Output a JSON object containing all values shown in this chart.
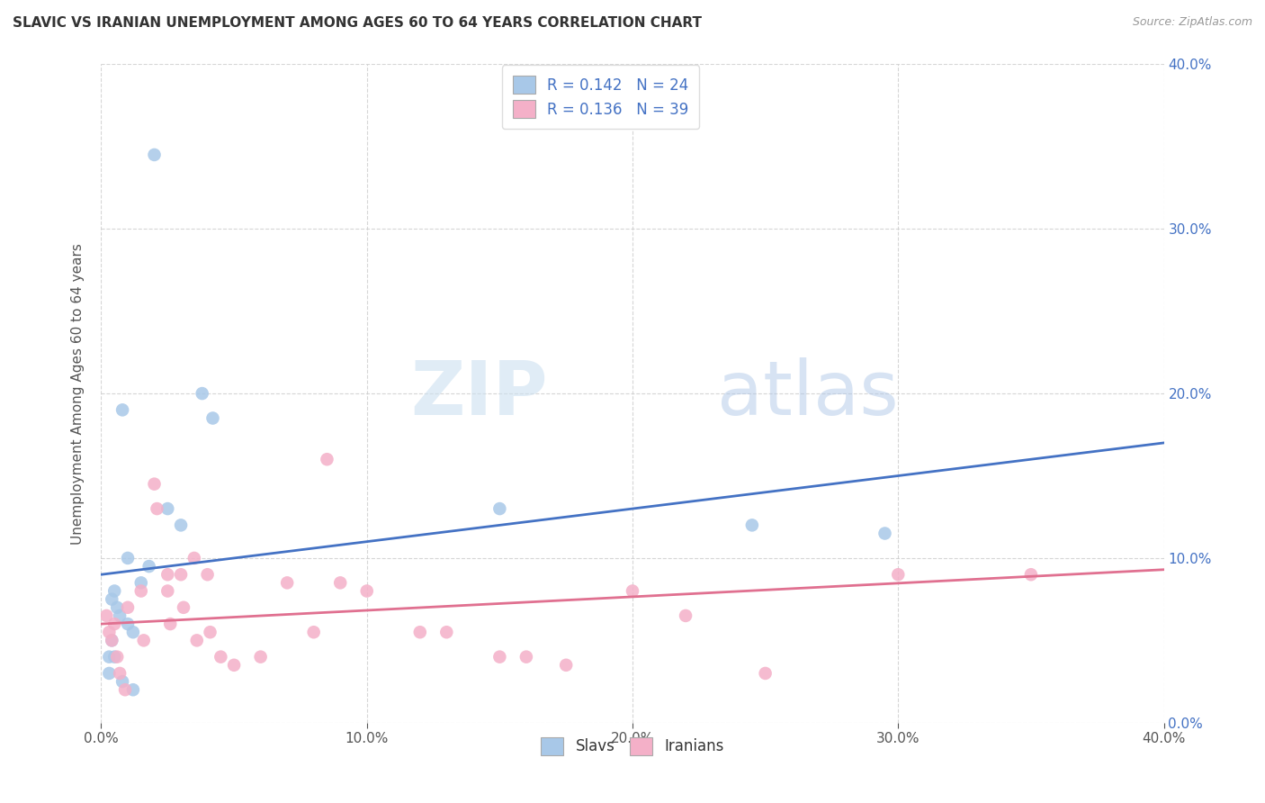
{
  "title": "SLAVIC VS IRANIAN UNEMPLOYMENT AMONG AGES 60 TO 64 YEARS CORRELATION CHART",
  "source": "Source: ZipAtlas.com",
  "ylabel": "Unemployment Among Ages 60 to 64 years",
  "xlim": [
    0.0,
    0.4
  ],
  "ylim": [
    0.0,
    0.4
  ],
  "xtick_vals": [
    0.0,
    0.1,
    0.2,
    0.3,
    0.4
  ],
  "ytick_vals": [
    0.0,
    0.1,
    0.2,
    0.3,
    0.4
  ],
  "slavs_color": "#a8c8e8",
  "iranians_color": "#f4b0c8",
  "slavs_line_color": "#4472c4",
  "iranians_line_color": "#e07090",
  "watermark_zip": "ZIP",
  "watermark_atlas": "atlas",
  "background_color": "#ffffff",
  "grid_color": "#cccccc",
  "slavs_line_y0": 0.09,
  "slavs_line_y1": 0.17,
  "iranians_line_y0": 0.06,
  "iranians_line_y1": 0.093,
  "slavs_x": [
    0.02,
    0.038,
    0.042,
    0.008,
    0.01,
    0.018,
    0.015,
    0.005,
    0.004,
    0.006,
    0.007,
    0.01,
    0.012,
    0.004,
    0.003,
    0.003,
    0.008,
    0.012,
    0.025,
    0.03,
    0.005,
    0.245,
    0.15,
    0.295
  ],
  "slavs_y": [
    0.345,
    0.2,
    0.185,
    0.19,
    0.1,
    0.095,
    0.085,
    0.08,
    0.075,
    0.07,
    0.065,
    0.06,
    0.055,
    0.05,
    0.04,
    0.03,
    0.025,
    0.02,
    0.13,
    0.12,
    0.04,
    0.12,
    0.13,
    0.115
  ],
  "iranians_x": [
    0.005,
    0.01,
    0.015,
    0.016,
    0.02,
    0.021,
    0.025,
    0.025,
    0.026,
    0.03,
    0.031,
    0.035,
    0.036,
    0.04,
    0.041,
    0.045,
    0.05,
    0.06,
    0.07,
    0.08,
    0.085,
    0.09,
    0.1,
    0.12,
    0.13,
    0.15,
    0.16,
    0.175,
    0.2,
    0.22,
    0.25,
    0.3,
    0.35,
    0.002,
    0.003,
    0.004,
    0.006,
    0.007,
    0.009
  ],
  "iranians_y": [
    0.06,
    0.07,
    0.08,
    0.05,
    0.145,
    0.13,
    0.09,
    0.08,
    0.06,
    0.09,
    0.07,
    0.1,
    0.05,
    0.09,
    0.055,
    0.04,
    0.035,
    0.04,
    0.085,
    0.055,
    0.16,
    0.085,
    0.08,
    0.055,
    0.055,
    0.04,
    0.04,
    0.035,
    0.08,
    0.065,
    0.03,
    0.09,
    0.09,
    0.065,
    0.055,
    0.05,
    0.04,
    0.03,
    0.02
  ],
  "legend1_label": "R = 0.142   N = 24",
  "legend2_label": "R = 0.136   N = 39"
}
